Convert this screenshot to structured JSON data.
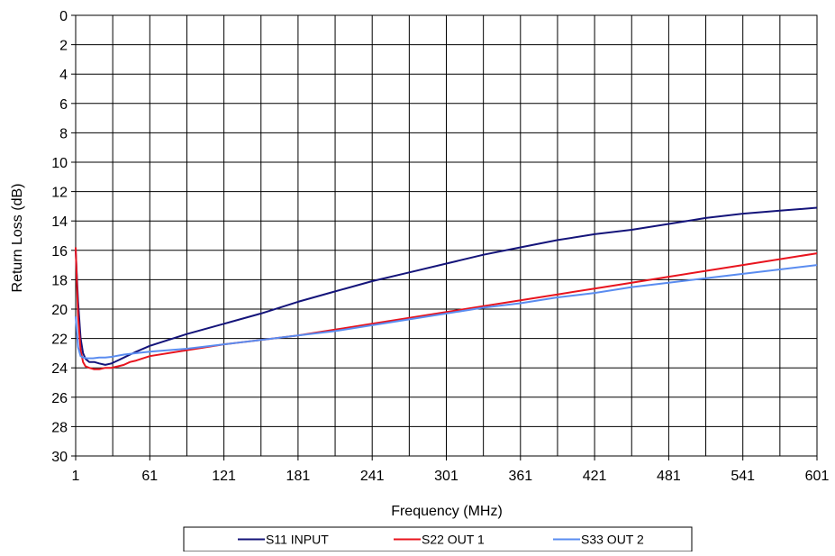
{
  "chart_data": {
    "type": "line",
    "title": "",
    "xlabel": "Frequency (MHz)",
    "ylabel": "Return Loss (dB)",
    "x_ticks": [
      1,
      61,
      121,
      181,
      241,
      301,
      361,
      421,
      481,
      541,
      601
    ],
    "x_minor_ticks": [
      31,
      91,
      151,
      211,
      271,
      331,
      391,
      451,
      511,
      571
    ],
    "y_ticks": [
      0,
      2,
      4,
      6,
      8,
      10,
      12,
      14,
      16,
      18,
      20,
      22,
      24,
      26,
      28,
      30
    ],
    "xlim": [
      1,
      601
    ],
    "ylim": [
      0,
      30
    ],
    "y_inverted": true,
    "grid": true,
    "legend_position": "bottom",
    "series": [
      {
        "name": "S11 INPUT",
        "color": "#14147a",
        "points": [
          [
            1,
            16.0
          ],
          [
            3,
            19.5
          ],
          [
            5,
            22.0
          ],
          [
            7,
            23.0
          ],
          [
            9,
            23.4
          ],
          [
            12,
            23.6
          ],
          [
            16,
            23.6
          ],
          [
            20,
            23.7
          ],
          [
            25,
            23.8
          ],
          [
            30,
            23.7
          ],
          [
            35,
            23.5
          ],
          [
            40,
            23.3
          ],
          [
            45,
            23.1
          ],
          [
            50,
            22.9
          ],
          [
            61,
            22.5
          ],
          [
            91,
            21.7
          ],
          [
            121,
            21.0
          ],
          [
            151,
            20.3
          ],
          [
            181,
            19.5
          ],
          [
            211,
            18.8
          ],
          [
            241,
            18.1
          ],
          [
            271,
            17.5
          ],
          [
            301,
            16.9
          ],
          [
            331,
            16.3
          ],
          [
            361,
            15.8
          ],
          [
            391,
            15.3
          ],
          [
            421,
            14.9
          ],
          [
            451,
            14.6
          ],
          [
            481,
            14.2
          ],
          [
            511,
            13.8
          ],
          [
            541,
            13.5
          ],
          [
            571,
            13.3
          ],
          [
            601,
            13.1
          ]
        ]
      },
      {
        "name": "S22 OUT 1",
        "color": "#e8141e",
        "points": [
          [
            1,
            15.8
          ],
          [
            3,
            20.5
          ],
          [
            5,
            22.8
          ],
          [
            7,
            23.6
          ],
          [
            9,
            23.9
          ],
          [
            12,
            24.0
          ],
          [
            16,
            24.1
          ],
          [
            20,
            24.1
          ],
          [
            25,
            24.0
          ],
          [
            30,
            24.0
          ],
          [
            35,
            23.9
          ],
          [
            40,
            23.8
          ],
          [
            45,
            23.6
          ],
          [
            50,
            23.5
          ],
          [
            61,
            23.2
          ],
          [
            91,
            22.8
          ],
          [
            121,
            22.4
          ],
          [
            151,
            22.1
          ],
          [
            181,
            21.8
          ],
          [
            211,
            21.4
          ],
          [
            241,
            21.0
          ],
          [
            271,
            20.6
          ],
          [
            301,
            20.2
          ],
          [
            331,
            19.8
          ],
          [
            361,
            19.4
          ],
          [
            391,
            19.0
          ],
          [
            421,
            18.6
          ],
          [
            451,
            18.2
          ],
          [
            481,
            17.8
          ],
          [
            511,
            17.4
          ],
          [
            541,
            17.0
          ],
          [
            571,
            16.6
          ],
          [
            601,
            16.2
          ]
        ]
      },
      {
        "name": "S33 OUT 2",
        "color": "#5a8cf0",
        "points": [
          [
            1,
            20.5
          ],
          [
            3,
            22.6
          ],
          [
            5,
            23.2
          ],
          [
            7,
            23.3
          ],
          [
            10,
            23.35
          ],
          [
            15,
            23.35
          ],
          [
            20,
            23.3
          ],
          [
            25,
            23.3
          ],
          [
            30,
            23.25
          ],
          [
            40,
            23.1
          ],
          [
            50,
            23.0
          ],
          [
            61,
            22.9
          ],
          [
            91,
            22.7
          ],
          [
            121,
            22.4
          ],
          [
            151,
            22.1
          ],
          [
            181,
            21.8
          ],
          [
            211,
            21.5
          ],
          [
            241,
            21.1
          ],
          [
            271,
            20.7
          ],
          [
            301,
            20.3
          ],
          [
            331,
            19.9
          ],
          [
            361,
            19.6
          ],
          [
            391,
            19.2
          ],
          [
            421,
            18.9
          ],
          [
            451,
            18.5
          ],
          [
            481,
            18.2
          ],
          [
            511,
            17.9
          ],
          [
            541,
            17.6
          ],
          [
            571,
            17.3
          ],
          [
            601,
            17.0
          ]
        ]
      }
    ]
  }
}
